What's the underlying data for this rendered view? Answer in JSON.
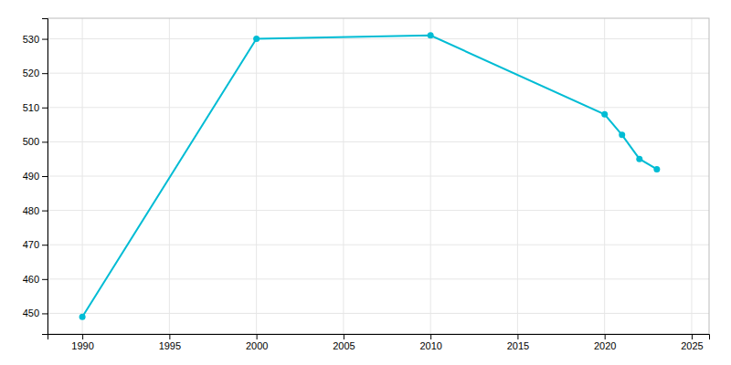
{
  "chart_data": {
    "type": "line",
    "x": [
      1990,
      2000,
      2010,
      2020,
      2021,
      2022,
      2023
    ],
    "values": [
      449,
      530,
      531,
      508,
      502,
      495,
      492
    ],
    "color": "#00bcd4",
    "marker": "circle",
    "xlim": [
      1988,
      2026
    ],
    "ylim": [
      444,
      536
    ],
    "xticks": [
      1990,
      1995,
      2000,
      2005,
      2010,
      2015,
      2020,
      2025
    ],
    "yticks": [
      450,
      460,
      470,
      480,
      490,
      500,
      510,
      520,
      530
    ],
    "grid": true
  }
}
